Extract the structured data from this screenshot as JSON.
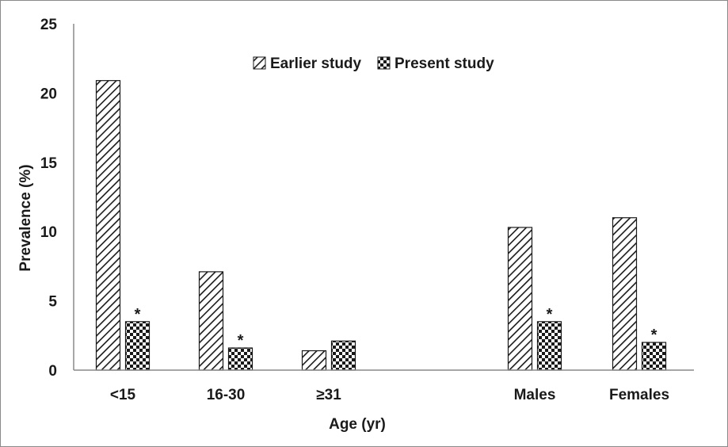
{
  "chart_data": {
    "type": "bar",
    "title": "",
    "xlabel": "Age (yr)",
    "ylabel": "Prevalence (%)",
    "ylim": [
      0,
      25
    ],
    "yticks": [
      "0",
      "5",
      "10",
      "15",
      "20",
      "25"
    ],
    "categories": [
      "<15",
      "16-30",
      "≥31",
      "Males",
      "Females"
    ],
    "series": [
      {
        "name": "Earlier study",
        "pattern": "diagonal-hatch",
        "values": [
          20.9,
          7.1,
          1.4,
          10.3,
          11.0
        ]
      },
      {
        "name": "Present study",
        "pattern": "checkerboard",
        "values": [
          3.5,
          1.6,
          2.1,
          3.5,
          2.0
        ]
      }
    ],
    "annotations": [
      {
        "category": "<15",
        "series": "Present study",
        "text": "*"
      },
      {
        "category": "16-30",
        "series": "Present study",
        "text": "*"
      },
      {
        "category": "Males",
        "series": "Present study",
        "text": "*"
      },
      {
        "category": "Females",
        "series": "Present study",
        "text": "*"
      }
    ],
    "legend": "top-center",
    "grid": false,
    "colors": {
      "ink": "#1a1a1a",
      "background": "#ffffff"
    }
  }
}
